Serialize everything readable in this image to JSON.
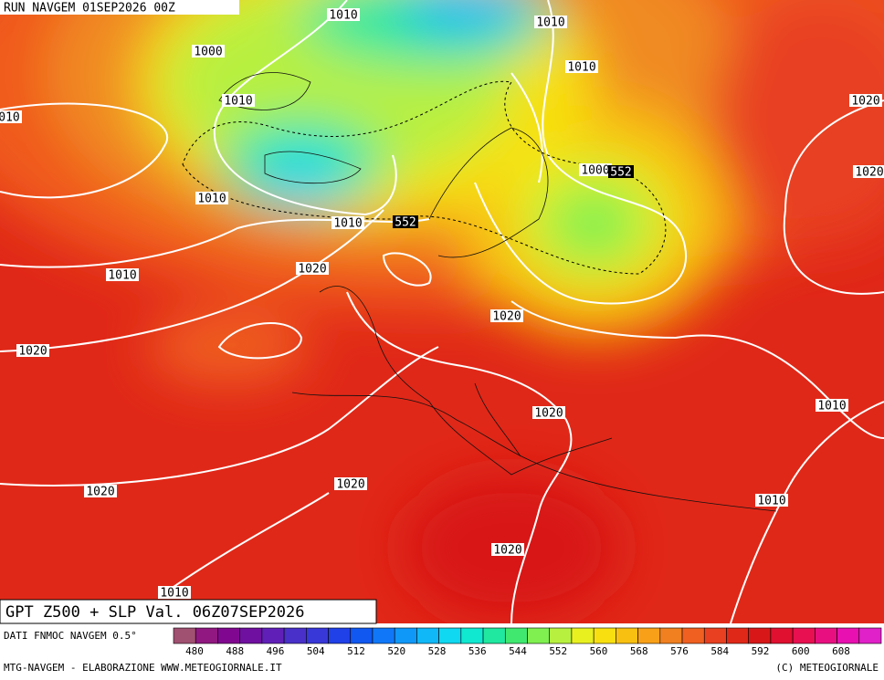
{
  "header": {
    "run": "RUN NAVGEM 01SEP2026 00Z"
  },
  "map": {
    "contour_labels": [
      {
        "text": "1010",
        "dark": false
      },
      {
        "text": "1010",
        "dark": false
      },
      {
        "text": "1000",
        "dark": false
      },
      {
        "text": "1010",
        "dark": false
      },
      {
        "text": "1010",
        "dark": false
      },
      {
        "text": "1020",
        "dark": false
      },
      {
        "text": "010",
        "dark": false
      },
      {
        "text": "1000",
        "dark": false
      },
      {
        "text": "552",
        "dark": true
      },
      {
        "text": "1020",
        "dark": false
      },
      {
        "text": "1010",
        "dark": false
      },
      {
        "text": "1010",
        "dark": false
      },
      {
        "text": "552",
        "dark": true
      },
      {
        "text": "1010",
        "dark": false
      },
      {
        "text": "1020",
        "dark": false
      },
      {
        "text": "1020",
        "dark": false
      },
      {
        "text": "1020",
        "dark": false
      },
      {
        "text": "1010",
        "dark": false
      },
      {
        "text": "1020",
        "dark": false
      },
      {
        "text": "1020",
        "dark": false
      },
      {
        "text": "1020",
        "dark": false
      },
      {
        "text": "1010",
        "dark": false
      },
      {
        "text": "1020",
        "dark": false
      },
      {
        "text": "1010",
        "dark": false
      }
    ]
  },
  "title_box": "GPT Z500 + SLP Val. 06Z07SEP2026",
  "legend": {
    "source": "DATI FNMOC NAVGEM 0.5°",
    "ticks": [
      480,
      488,
      496,
      504,
      512,
      520,
      528,
      536,
      544,
      552,
      560,
      568,
      576,
      584,
      592,
      600,
      608
    ],
    "colors": [
      "#a05070",
      "#901880",
      "#800890",
      "#7010a0",
      "#6020b8",
      "#4830c8",
      "#3838d8",
      "#2040e8",
      "#1058f0",
      "#1078f8",
      "#1098f8",
      "#10b8f8",
      "#10d8f0",
      "#10e8d0",
      "#20e8a0",
      "#40e870",
      "#80f050",
      "#b8f040",
      "#e8f020",
      "#f8e010",
      "#f8c010",
      "#f8a018",
      "#f08020",
      "#f06020",
      "#e84020",
      "#e02818",
      "#d81818",
      "#e01030",
      "#e81050",
      "#e81080",
      "#e810b0",
      "#e020c8"
    ]
  },
  "footer": {
    "left": "MTG-NAVGEM - ELABORAZIONE WWW.METEOGIORNALE.IT",
    "right": "(C) METEOGIORNALE"
  }
}
